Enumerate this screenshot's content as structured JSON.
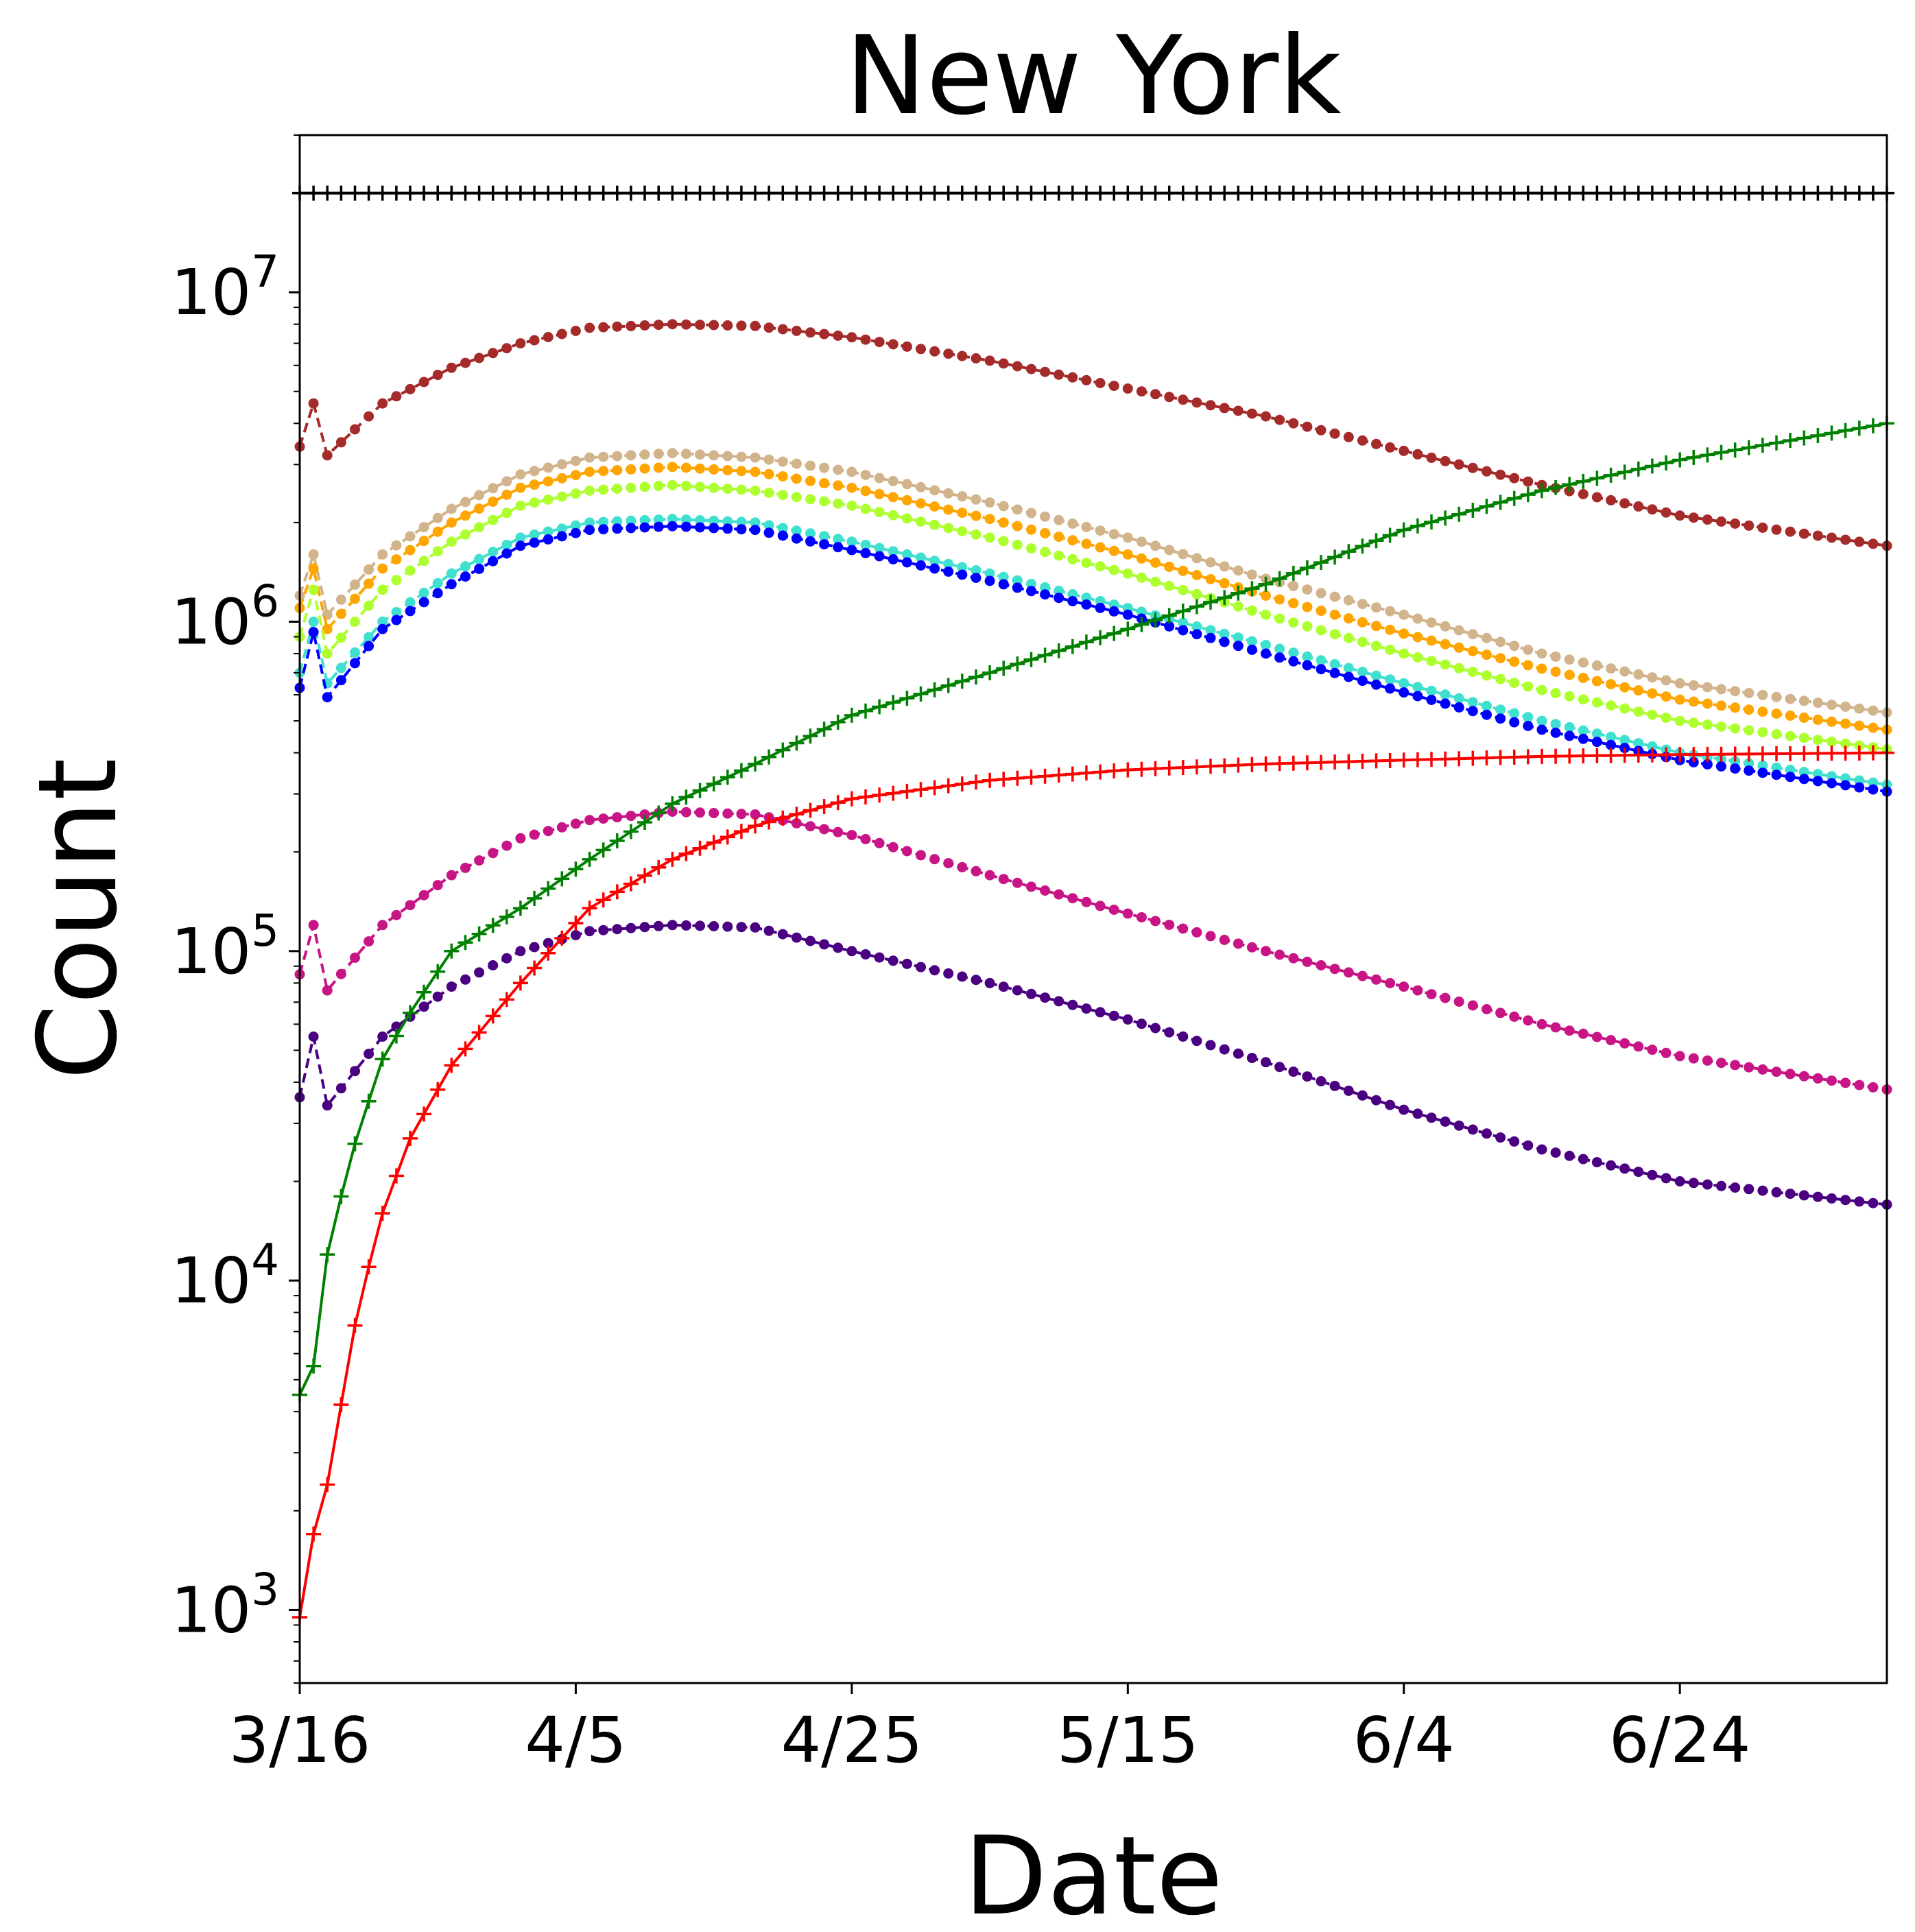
{
  "chart_data": {
    "type": "line",
    "title": "New York",
    "xlabel": "Date",
    "ylabel": "Count",
    "x_start": "3/16",
    "x_end": "7/9",
    "x_ticks": [
      "3/16",
      "4/5",
      "4/25",
      "5/15",
      "6/4",
      "6/24"
    ],
    "y_scale": "log",
    "y_range": [
      600,
      30000000
    ],
    "y_ticks": [
      {
        "value": 1000,
        "base": "10",
        "exp": "3"
      },
      {
        "value": 10000,
        "base": "10",
        "exp": "4"
      },
      {
        "value": 100000,
        "base": "10",
        "exp": "5"
      },
      {
        "value": 1000000,
        "base": "10",
        "exp": "6"
      },
      {
        "value": 10000000,
        "base": "10",
        "exp": "7"
      }
    ],
    "grid": false,
    "legend": "none",
    "series": [
      {
        "color": "#000000",
        "marker": "plus",
        "points": [
          [
            "3/16",
            20000000
          ],
          [
            "7/9",
            20000000
          ]
        ]
      },
      {
        "color": "#a52a2a",
        "marker": "dot",
        "points": [
          [
            "3/16",
            3400000
          ],
          [
            "3/17",
            4600000
          ],
          [
            "3/18",
            3200000
          ],
          [
            "3/22",
            4600000
          ],
          [
            "3/27",
            5900000
          ],
          [
            "4/1",
            7000000
          ],
          [
            "4/6",
            7800000
          ],
          [
            "4/12",
            8000000
          ],
          [
            "4/18",
            7900000
          ],
          [
            "4/25",
            7300000
          ],
          [
            "5/5",
            6200000
          ],
          [
            "5/15",
            5100000
          ],
          [
            "5/25",
            4200000
          ],
          [
            "6/4",
            3300000
          ],
          [
            "6/14",
            2600000
          ],
          [
            "6/24",
            2100000
          ],
          [
            "7/9",
            1700000
          ]
        ]
      },
      {
        "color": "#d2b48c",
        "marker": "dot",
        "points": [
          [
            "3/16",
            1200000
          ],
          [
            "3/17",
            1600000
          ],
          [
            "3/18",
            1050000
          ],
          [
            "3/22",
            1600000
          ],
          [
            "3/27",
            2200000
          ],
          [
            "4/1",
            2800000
          ],
          [
            "4/6",
            3150000
          ],
          [
            "4/12",
            3250000
          ],
          [
            "4/18",
            3150000
          ],
          [
            "4/25",
            2850000
          ],
          [
            "5/5",
            2300000
          ],
          [
            "5/15",
            1800000
          ],
          [
            "5/25",
            1350000
          ],
          [
            "6/4",
            1050000
          ],
          [
            "6/14",
            800000
          ],
          [
            "6/24",
            650000
          ],
          [
            "7/9",
            530000
          ]
        ]
      },
      {
        "color": "#ffa500",
        "marker": "dot",
        "points": [
          [
            "3/16",
            1100000
          ],
          [
            "3/17",
            1450000
          ],
          [
            "3/18",
            950000
          ],
          [
            "3/22",
            1450000
          ],
          [
            "3/27",
            2000000
          ],
          [
            "4/1",
            2550000
          ],
          [
            "4/6",
            2850000
          ],
          [
            "4/12",
            2950000
          ],
          [
            "4/18",
            2850000
          ],
          [
            "4/25",
            2550000
          ],
          [
            "5/5",
            2050000
          ],
          [
            "5/15",
            1600000
          ],
          [
            "5/25",
            1200000
          ],
          [
            "6/4",
            920000
          ],
          [
            "6/14",
            720000
          ],
          [
            "6/24",
            580000
          ],
          [
            "7/9",
            470000
          ]
        ]
      },
      {
        "color": "#adff2f",
        "marker": "dot",
        "points": [
          [
            "3/16",
            900000
          ],
          [
            "3/17",
            1250000
          ],
          [
            "3/18",
            800000
          ],
          [
            "3/22",
            1250000
          ],
          [
            "3/27",
            1750000
          ],
          [
            "4/1",
            2250000
          ],
          [
            "4/6",
            2500000
          ],
          [
            "4/12",
            2600000
          ],
          [
            "4/18",
            2500000
          ],
          [
            "4/25",
            2250000
          ],
          [
            "5/5",
            1800000
          ],
          [
            "5/15",
            1400000
          ],
          [
            "5/25",
            1050000
          ],
          [
            "6/4",
            800000
          ],
          [
            "6/14",
            620000
          ],
          [
            "6/24",
            500000
          ],
          [
            "7/9",
            410000
          ]
        ]
      },
      {
        "color": "#40e0d0",
        "marker": "dot",
        "points": [
          [
            "3/16",
            700000
          ],
          [
            "3/17",
            1000000
          ],
          [
            "3/18",
            650000
          ],
          [
            "3/22",
            1000000
          ],
          [
            "3/27",
            1400000
          ],
          [
            "4/1",
            1800000
          ],
          [
            "4/6",
            2000000
          ],
          [
            "4/12",
            2050000
          ],
          [
            "4/18",
            2000000
          ],
          [
            "4/25",
            1750000
          ],
          [
            "5/5",
            1400000
          ],
          [
            "5/15",
            1100000
          ],
          [
            "5/25",
            850000
          ],
          [
            "6/4",
            650000
          ],
          [
            "6/14",
            500000
          ],
          [
            "6/24",
            400000
          ],
          [
            "7/9",
            320000
          ]
        ]
      },
      {
        "color": "#0000ff",
        "marker": "dot",
        "points": [
          [
            "3/16",
            630000
          ],
          [
            "3/17",
            930000
          ],
          [
            "3/18",
            590000
          ],
          [
            "3/22",
            950000
          ],
          [
            "3/27",
            1300000
          ],
          [
            "4/1",
            1700000
          ],
          [
            "4/6",
            1900000
          ],
          [
            "4/12",
            1950000
          ],
          [
            "4/18",
            1900000
          ],
          [
            "4/25",
            1650000
          ],
          [
            "5/5",
            1330000
          ],
          [
            "5/15",
            1050000
          ],
          [
            "5/25",
            800000
          ],
          [
            "6/4",
            610000
          ],
          [
            "6/14",
            470000
          ],
          [
            "6/24",
            380000
          ],
          [
            "7/9",
            305000
          ]
        ]
      },
      {
        "color": "#c71585",
        "marker": "dot",
        "points": [
          [
            "3/16",
            85000
          ],
          [
            "3/17",
            120000
          ],
          [
            "3/18",
            76000
          ],
          [
            "3/22",
            120000
          ],
          [
            "3/27",
            170000
          ],
          [
            "4/1",
            220000
          ],
          [
            "4/6",
            250000
          ],
          [
            "4/12",
            265000
          ],
          [
            "4/18",
            260000
          ],
          [
            "4/25",
            225000
          ],
          [
            "5/5",
            170000
          ],
          [
            "5/15",
            130000
          ],
          [
            "5/25",
            100000
          ],
          [
            "6/4",
            78000
          ],
          [
            "6/14",
            60000
          ],
          [
            "6/24",
            48000
          ],
          [
            "7/9",
            38000
          ]
        ]
      },
      {
        "color": "#4b0082",
        "marker": "dot",
        "points": [
          [
            "3/16",
            36000
          ],
          [
            "3/17",
            55000
          ],
          [
            "3/18",
            34000
          ],
          [
            "3/22",
            55000
          ],
          [
            "3/27",
            78000
          ],
          [
            "4/1",
            100000
          ],
          [
            "4/6",
            115000
          ],
          [
            "4/12",
            120000
          ],
          [
            "4/18",
            118000
          ],
          [
            "4/25",
            100000
          ],
          [
            "5/5",
            80000
          ],
          [
            "5/15",
            62000
          ],
          [
            "5/25",
            46000
          ],
          [
            "6/4",
            33000
          ],
          [
            "6/14",
            25000
          ],
          [
            "6/24",
            20000
          ],
          [
            "7/9",
            17000
          ]
        ]
      },
      {
        "color": "#008000",
        "marker": "plus",
        "points": [
          [
            "3/16",
            4500
          ],
          [
            "3/17",
            5500
          ],
          [
            "3/18",
            12000
          ],
          [
            "3/19",
            18000
          ],
          [
            "3/20",
            26000
          ],
          [
            "3/21",
            35000
          ],
          [
            "3/22",
            47000
          ],
          [
            "3/24",
            65000
          ],
          [
            "3/27",
            100000
          ],
          [
            "4/1",
            135000
          ],
          [
            "4/6",
            190000
          ],
          [
            "4/12",
            280000
          ],
          [
            "4/18",
            370000
          ],
          [
            "4/25",
            520000
          ],
          [
            "5/5",
            700000
          ],
          [
            "5/15",
            950000
          ],
          [
            "5/25",
            1300000
          ],
          [
            "6/4",
            1900000
          ],
          [
            "6/14",
            2500000
          ],
          [
            "6/24",
            3100000
          ],
          [
            "7/9",
            4000000
          ]
        ]
      },
      {
        "color": "#ff0000",
        "marker": "plus",
        "points": [
          [
            "3/16",
            950
          ],
          [
            "3/17",
            1700
          ],
          [
            "3/18",
            2400
          ],
          [
            "3/19",
            4200
          ],
          [
            "3/20",
            7300
          ],
          [
            "3/21",
            11000
          ],
          [
            "3/22",
            16000
          ],
          [
            "3/24",
            27000
          ],
          [
            "3/27",
            45000
          ],
          [
            "4/1",
            80000
          ],
          [
            "4/6",
            135000
          ],
          [
            "4/12",
            190000
          ],
          [
            "4/18",
            240000
          ],
          [
            "4/25",
            290000
          ],
          [
            "5/5",
            330000
          ],
          [
            "5/15",
            355000
          ],
          [
            "5/25",
            370000
          ],
          [
            "6/4",
            380000
          ],
          [
            "6/14",
            390000
          ],
          [
            "6/24",
            395000
          ],
          [
            "7/9",
            400000
          ]
        ]
      }
    ]
  }
}
